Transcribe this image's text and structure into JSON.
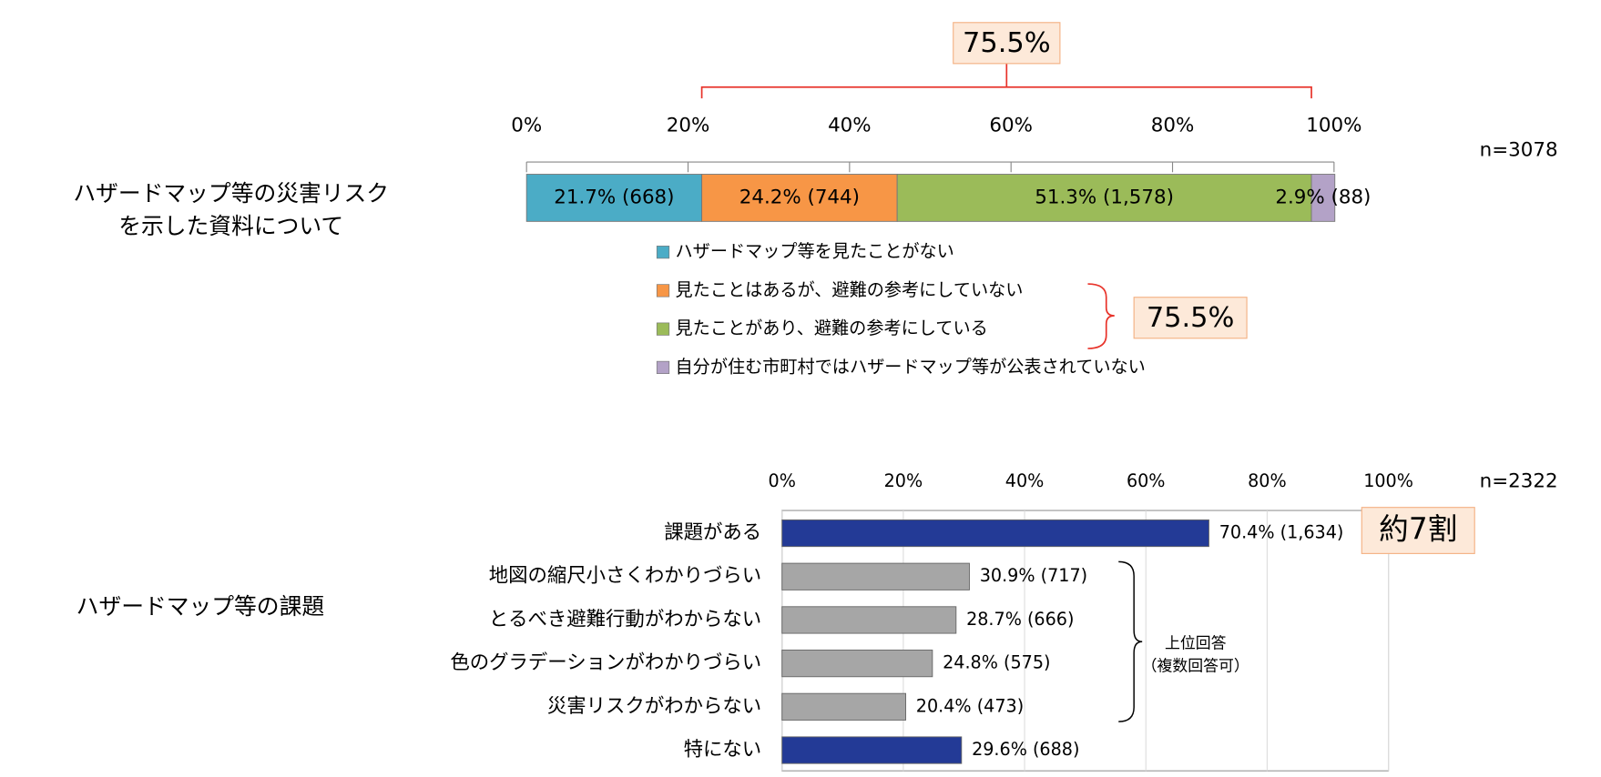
{
  "charts": [
    {
      "type": "stacked_bar",
      "title": "ハザードマップ等の災害リスク",
      "title_line2": "を示した資料について",
      "n_label": "n=3078",
      "xlim": [
        0,
        100
      ],
      "xticks": [
        {
          "value": 0,
          "label": "0%"
        },
        {
          "value": 20,
          "label": "20%"
        },
        {
          "value": 40,
          "label": "40%"
        },
        {
          "value": 60,
          "label": "60%"
        },
        {
          "value": 80,
          "label": "80%"
        },
        {
          "value": 100,
          "label": "100%"
        }
      ],
      "series": [
        {
          "name": "ハザードマップ等を見たことがない",
          "color": "#4bacc6",
          "values": [
            21.7
          ],
          "value_labels": [
            "21.7% (668)"
          ]
        },
        {
          "name": "見たことはあるが、避難の参考にしていない",
          "color": "#f79646",
          "values": [
            24.2
          ],
          "value_labels": [
            "24.2% (744)"
          ]
        },
        {
          "name": "見たことがあり、避難の参考にしている",
          "color": "#9bbb59",
          "values": [
            51.3
          ],
          "value_labels": [
            "51.3% (1,578)"
          ]
        },
        {
          "name": "自分が住む市町村ではハザードマップ等が公表されていない",
          "color": "#b3a2c7",
          "values": [
            2.9
          ],
          "value_labels": [
            "2.9% (88)"
          ]
        }
      ],
      "annotations": [
        "75.5%",
        "75.5%"
      ]
    },
    {
      "type": "hbar",
      "title": "ハザードマップ等の課題",
      "n_label": "n=2322",
      "xlim": [
        0,
        100
      ],
      "xticks": [
        {
          "value": 0,
          "label": "0%"
        },
        {
          "value": 20,
          "label": "20%"
        },
        {
          "value": 40,
          "label": "40%"
        },
        {
          "value": 60,
          "label": "60%"
        },
        {
          "value": 80,
          "label": "80%"
        },
        {
          "value": 100,
          "label": "100%"
        }
      ],
      "grid": true,
      "categories": [
        "課題がある",
        "地図の縮尺小さくわかりづらい",
        "とるべき避難行動がわからない",
        "色のグラデーションがわかりづらい",
        "災害リスクがわからない",
        "特にない"
      ],
      "values": [
        70.4,
        30.9,
        28.7,
        24.8,
        20.4,
        29.6
      ],
      "value_labels": [
        "70.4% (1,634)",
        "30.9% (717)",
        "28.7% (666)",
        "24.8% (575)",
        "20.4% (473)",
        "29.6% (688)"
      ],
      "colors": [
        "#233a96",
        "#a6a6a6",
        "#a6a6a6",
        "#a6a6a6",
        "#a6a6a6",
        "#233a96"
      ],
      "annotations": [
        "約7割",
        "上位回答",
        "（複数回答可）"
      ]
    }
  ]
}
